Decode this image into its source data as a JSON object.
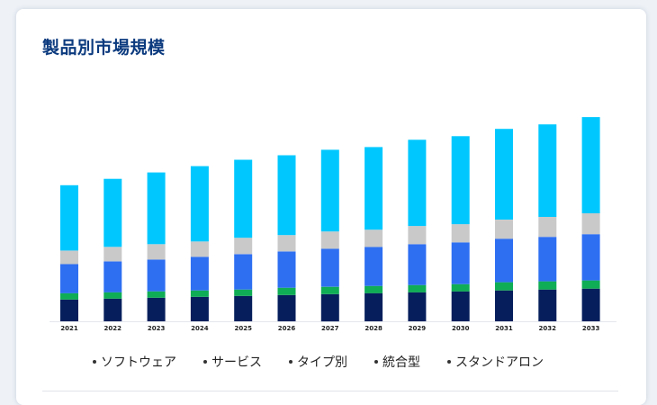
{
  "page": {
    "title": "製品別市場規模"
  },
  "chart_data": {
    "type": "bar",
    "stacked": true,
    "title": "製品別市場規模",
    "xlabel": "",
    "ylabel": "",
    "categories": [
      "2021",
      "2022",
      "2023",
      "2024",
      "2025",
      "2026",
      "2027",
      "2028",
      "2029",
      "2030",
      "2031",
      "2032",
      "2033"
    ],
    "series": [
      {
        "name": "スタンドアロン",
        "color": "#061f5c",
        "values": [
          24,
          25,
          26,
          27,
          28,
          29,
          30,
          31,
          32,
          33,
          34,
          35,
          36
        ]
      },
      {
        "name": "統合型",
        "color": "#0fad55",
        "values": [
          7,
          7,
          7,
          7,
          7,
          8,
          8,
          8,
          8,
          8,
          9,
          9,
          9
        ]
      },
      {
        "name": "タイプ別",
        "color": "#2e6ff2",
        "values": [
          32,
          34,
          35,
          37,
          39,
          40,
          42,
          43,
          45,
          46,
          48,
          49,
          51
        ]
      },
      {
        "name": "サービス",
        "color": "#c9c9c9",
        "values": [
          15,
          16,
          17,
          17,
          18,
          18,
          19,
          19,
          20,
          20,
          21,
          22,
          23
        ]
      },
      {
        "name": "ソフトウェア",
        "color": "#00c8ff",
        "values": [
          72,
          75,
          79,
          83,
          86,
          88,
          90,
          91,
          95,
          97,
          100,
          102,
          106
        ]
      }
    ],
    "ylim": [
      0,
      240
    ],
    "grid": false,
    "legend_position": "bottom"
  },
  "legend_order": [
    "ソフトウェア",
    "サービス",
    "タイプ別",
    "統合型",
    "スタンドアロン"
  ]
}
